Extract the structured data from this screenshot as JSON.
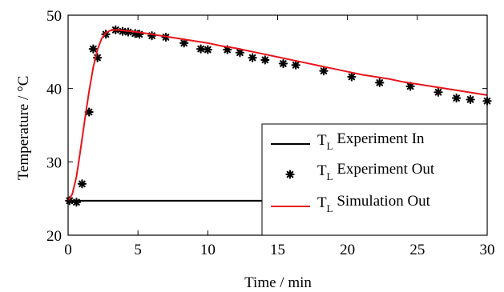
{
  "chart_data": {
    "type": "line",
    "xlabel": "Time / min",
    "ylabel": "Temperature / °C",
    "xlim": [
      0,
      30
    ],
    "ylim": [
      20,
      50
    ],
    "xticks": [
      "0",
      "5",
      "10",
      "15",
      "20",
      "25",
      "30"
    ],
    "yticks": [
      "20",
      "30",
      "40",
      "50"
    ],
    "grid": false,
    "legend_position": "bottom-right",
    "series": [
      {
        "name": "T",
        "name_sub": "L",
        "name_rest": " Experiment In",
        "style": "line",
        "color": "#000000",
        "x": [
          0,
          30
        ],
        "y": [
          24.7,
          24.7
        ]
      },
      {
        "name": "T",
        "name_sub": "L",
        "name_rest": " Experiment Out",
        "style": "markers",
        "marker": "asterisk",
        "color": "#000000",
        "x": [
          0.1,
          0.6,
          1.0,
          1.5,
          1.8,
          2.1,
          2.7,
          3.4,
          3.9,
          4.3,
          4.8,
          5.1,
          6.0,
          7.0,
          8.3,
          9.5,
          10.0,
          11.4,
          12.3,
          13.2,
          14.1,
          15.4,
          16.3,
          18.3,
          20.3,
          22.3,
          24.5,
          26.5,
          27.8,
          28.8,
          30.0
        ],
        "y": [
          24.7,
          24.5,
          27.0,
          36.8,
          45.4,
          44.2,
          47.4,
          48.0,
          47.8,
          47.7,
          47.5,
          47.4,
          47.2,
          47.0,
          46.2,
          45.4,
          45.3,
          45.3,
          44.9,
          44.2,
          43.9,
          43.4,
          43.2,
          42.4,
          41.6,
          40.8,
          40.3,
          39.5,
          38.7,
          38.5,
          38.3
        ]
      },
      {
        "name": "T",
        "name_sub": "L",
        "name_rest": " Simulation Out",
        "style": "line",
        "color": "#e8141b",
        "x": [
          0,
          0.3,
          0.6,
          0.9,
          1.2,
          1.5,
          1.8,
          2.1,
          2.4,
          2.7,
          3.0,
          3.3,
          3.6,
          4.0,
          4.5,
          5.0,
          6,
          7,
          8,
          9,
          10,
          11,
          12,
          13,
          14,
          15,
          16,
          17,
          18,
          19,
          20,
          21,
          22,
          23,
          24,
          25,
          26,
          27,
          28,
          29,
          30
        ],
        "y": [
          24.7,
          25.6,
          28.0,
          31.8,
          35.8,
          39.6,
          42.9,
          45.3,
          46.8,
          47.6,
          47.9,
          48.0,
          48.0,
          47.9,
          47.8,
          47.7,
          47.4,
          47.1,
          46.8,
          46.5,
          46.2,
          45.8,
          45.5,
          45.1,
          44.7,
          44.3,
          43.9,
          43.5,
          43.1,
          42.7,
          42.3,
          41.9,
          41.6,
          41.3,
          40.9,
          40.6,
          40.3,
          40.0,
          39.7,
          39.4,
          39.1
        ]
      }
    ]
  }
}
